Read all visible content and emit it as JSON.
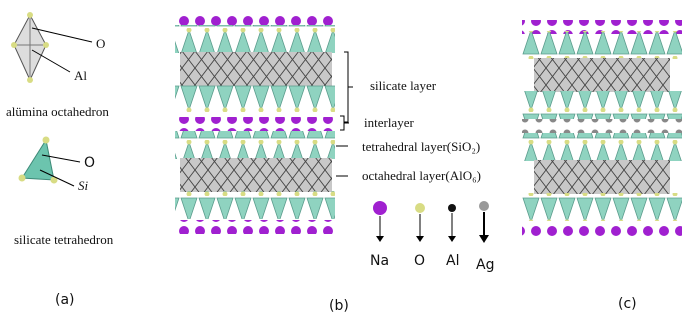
{
  "panel_a": {
    "octahedron": {
      "label_o": "O",
      "label_al": "Al",
      "caption": "alümina octahedron"
    },
    "tetrahedron": {
      "label_o": "O",
      "label_si": "Si",
      "caption": "silicate tetrahedron"
    },
    "panel_label": "(a)"
  },
  "panel_b": {
    "layer_labels": [
      "silicate layer",
      "interlayer",
      "tetrahedral layer(SiO₂)",
      "octahedral layer(AlO₆)"
    ],
    "legend": [
      "Na",
      "O",
      "Al",
      "Ag"
    ],
    "panel_label": "(b)"
  },
  "panel_c": {
    "panel_label": "(c)"
  }
}
